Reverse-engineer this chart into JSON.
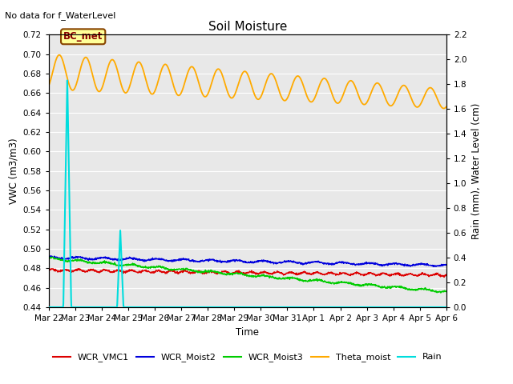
{
  "title": "Soil Moisture",
  "top_label": "No data for f_WaterLevel",
  "ylabel_left": "VWC (m3/m3)",
  "ylabel_right": "Rain (mm), Water Level (cm)",
  "xlabel": "Time",
  "ylim_left": [
    0.44,
    0.72
  ],
  "ylim_right": [
    0.0,
    2.2
  ],
  "yticks_left": [
    0.44,
    0.46,
    0.48,
    0.5,
    0.52,
    0.54,
    0.56,
    0.58,
    0.6,
    0.62,
    0.64,
    0.66,
    0.68,
    0.7,
    0.72
  ],
  "yticks_right": [
    0.0,
    0.2,
    0.4,
    0.6,
    0.8,
    1.0,
    1.2,
    1.4,
    1.6,
    1.8,
    2.0,
    2.2
  ],
  "xtick_labels": [
    "Mar 22",
    "Mar 23",
    "Mar 24",
    "Mar 25",
    "Mar 26",
    "Mar 27",
    "Mar 28",
    "Mar 29",
    "Mar 30",
    "Mar 31",
    "Apr 1",
    "Apr 2",
    "Apr 3",
    "Apr 4",
    "Apr 5",
    "Apr 6"
  ],
  "annotation_text": "BC_met",
  "bg_color": "#e8e8e8",
  "line_colors": {
    "WCR_VMC1": "#dd0000",
    "WCR_Moist2": "#0000dd",
    "WCR_Moist3": "#00cc00",
    "Theta_moist": "#ffaa00",
    "Rain": "#00dddd"
  }
}
